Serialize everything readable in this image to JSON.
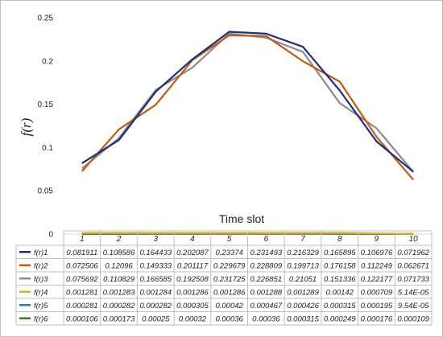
{
  "chart_data": {
    "type": "line",
    "xlabel": "Time slot",
    "ylabel": "f(r)",
    "ylim": [
      0,
      0.25
    ],
    "yticks": [
      "0",
      "0.05",
      "0.1",
      "0.15",
      "0.2",
      "0.25"
    ],
    "categories": [
      "1",
      "2",
      "3",
      "4",
      "5",
      "6",
      "7",
      "8",
      "9",
      "10"
    ],
    "grid": false,
    "legend": "data table below plot",
    "series": [
      {
        "name": "f(r)1",
        "color": "#1f2e7a",
        "values": [
          0.081911,
          0.108586,
          0.164433,
          0.202087,
          0.23374,
          0.231493,
          0.216329,
          0.165895,
          0.106976,
          0.071962
        ],
        "labels": [
          "0.081911",
          "0.108586",
          "0.164433",
          "0.202087",
          "0.23374",
          "0.231493",
          "0.216329",
          "0.165895",
          "0.106976",
          "0.071962"
        ]
      },
      {
        "name": "f(r)2",
        "color": "#c55a11",
        "values": [
          0.072506,
          0.12096,
          0.149333,
          0.201117,
          0.229679,
          0.228809,
          0.199713,
          0.176158,
          0.112249,
          0.062671
        ],
        "labels": [
          "0.072506",
          "0.12096",
          "0.149333",
          "0.201117",
          "0.229679",
          "0.228809",
          "0.199713",
          "0.176158",
          "0.112249",
          "0.062671"
        ]
      },
      {
        "name": "f(r)3",
        "color": "#8c8c8c",
        "values": [
          0.075692,
          0.110829,
          0.166585,
          0.192508,
          0.231725,
          0.226851,
          0.21051,
          0.151336,
          0.122177,
          0.071733
        ],
        "labels": [
          "0.075692",
          "0.110829",
          "0.166585",
          "0.192508",
          "0.231725",
          "0.226851",
          "0.21051",
          "0.151336",
          "0.122177",
          "0.071733"
        ]
      },
      {
        "name": "f(r)4",
        "color": "#e6b000",
        "values": [
          0.001281,
          0.001283,
          0.001284,
          0.001286,
          0.001286,
          0.001288,
          0.001289,
          0.00142,
          0.000709,
          5.14e-05
        ],
        "labels": [
          "0.001281",
          "0.001283",
          "0.001284",
          "0.001286",
          "0.001286",
          "0.001288",
          "0.001289",
          "0.00142",
          "0.000709",
          "5.14E-05"
        ]
      },
      {
        "name": "f(r)5",
        "color": "#2e75b6",
        "values": [
          0.000281,
          0.000282,
          0.000282,
          0.000305,
          0.00042,
          0.000467,
          0.000426,
          0.000315,
          0.000195,
          9.54e-05
        ],
        "labels": [
          "0.000281",
          "0.000282",
          "0.000282",
          "0.000305",
          "0.00042",
          "0.000467",
          "0.000426",
          "0.000315",
          "0.000195",
          "9.54E-05"
        ]
      },
      {
        "name": "f(r)6",
        "color": "#3a7d1c",
        "values": [
          0.000106,
          0.000173,
          0.00025,
          0.00032,
          0.00036,
          0.00036,
          0.000315,
          0.000249,
          0.000176,
          0.000109
        ],
        "labels": [
          "0.000106",
          "0.000173",
          "0.00025",
          "0.00032",
          "0.00036",
          "0.00036",
          "0.000315",
          "0.000249",
          "0.000176",
          "0.000109"
        ]
      }
    ]
  }
}
